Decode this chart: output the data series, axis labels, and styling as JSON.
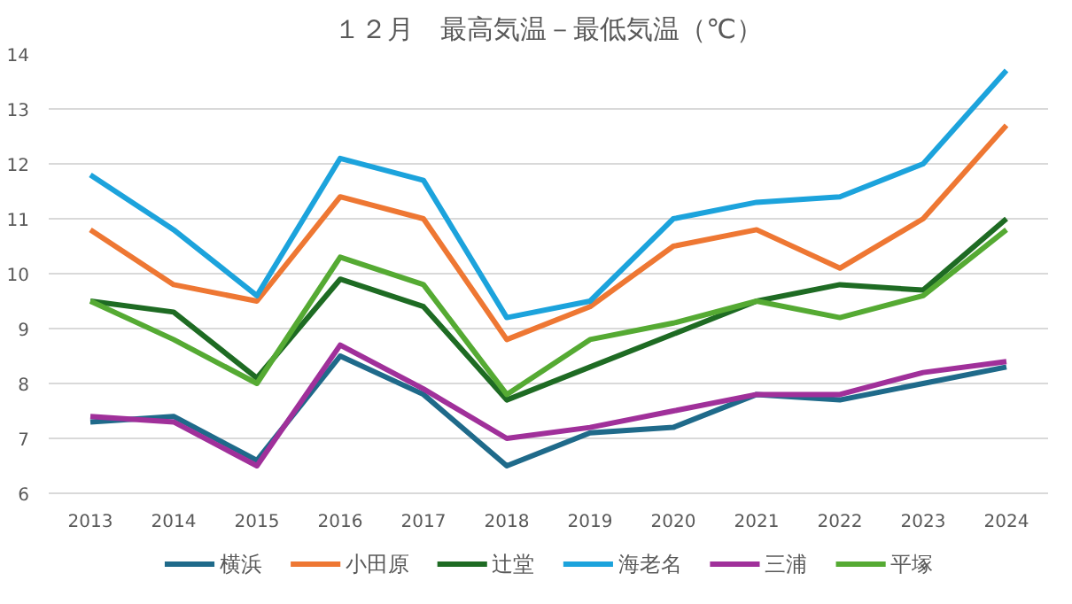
{
  "chart_data": {
    "type": "line",
    "title": "１２月　最高気温－最低気温（℃）",
    "categories": [
      "2013",
      "2014",
      "2015",
      "2016",
      "2017",
      "2018",
      "2019",
      "2020",
      "2021",
      "2022",
      "2023",
      "2024"
    ],
    "ylim": [
      6,
      14
    ],
    "yticks": [
      6,
      7,
      8,
      9,
      10,
      11,
      12,
      13,
      14
    ],
    "grid": "y",
    "legend": "bottom",
    "marker": "none",
    "line_style": "solid",
    "series": [
      {
        "name": "横浜",
        "color": "#1f6a8a",
        "values": [
          7.3,
          7.4,
          6.6,
          8.5,
          7.8,
          6.5,
          7.1,
          7.2,
          7.8,
          7.7,
          8.0,
          8.3
        ]
      },
      {
        "name": "小田原",
        "color": "#ee7733",
        "values": [
          10.8,
          9.8,
          9.5,
          11.4,
          11.0,
          8.8,
          9.4,
          10.5,
          10.8,
          10.1,
          11.0,
          12.7
        ]
      },
      {
        "name": "辻堂",
        "color": "#1e6b23",
        "values": [
          9.5,
          9.3,
          8.1,
          9.9,
          9.4,
          7.7,
          8.3,
          8.9,
          9.5,
          9.8,
          9.7,
          11.0
        ]
      },
      {
        "name": "海老名",
        "color": "#1ca3dc",
        "values": [
          11.8,
          10.8,
          9.6,
          12.1,
          11.7,
          9.2,
          9.5,
          11.0,
          11.3,
          11.4,
          12.0,
          13.7
        ]
      },
      {
        "name": "三浦",
        "color": "#a0309a",
        "values": [
          7.4,
          7.3,
          6.5,
          8.7,
          7.9,
          7.0,
          7.2,
          7.5,
          7.8,
          7.8,
          8.2,
          8.4
        ]
      },
      {
        "name": "平塚",
        "color": "#55aa33",
        "values": [
          9.5,
          8.8,
          8.0,
          10.3,
          9.8,
          7.8,
          8.8,
          9.1,
          9.5,
          9.2,
          9.6,
          10.8
        ]
      }
    ]
  }
}
